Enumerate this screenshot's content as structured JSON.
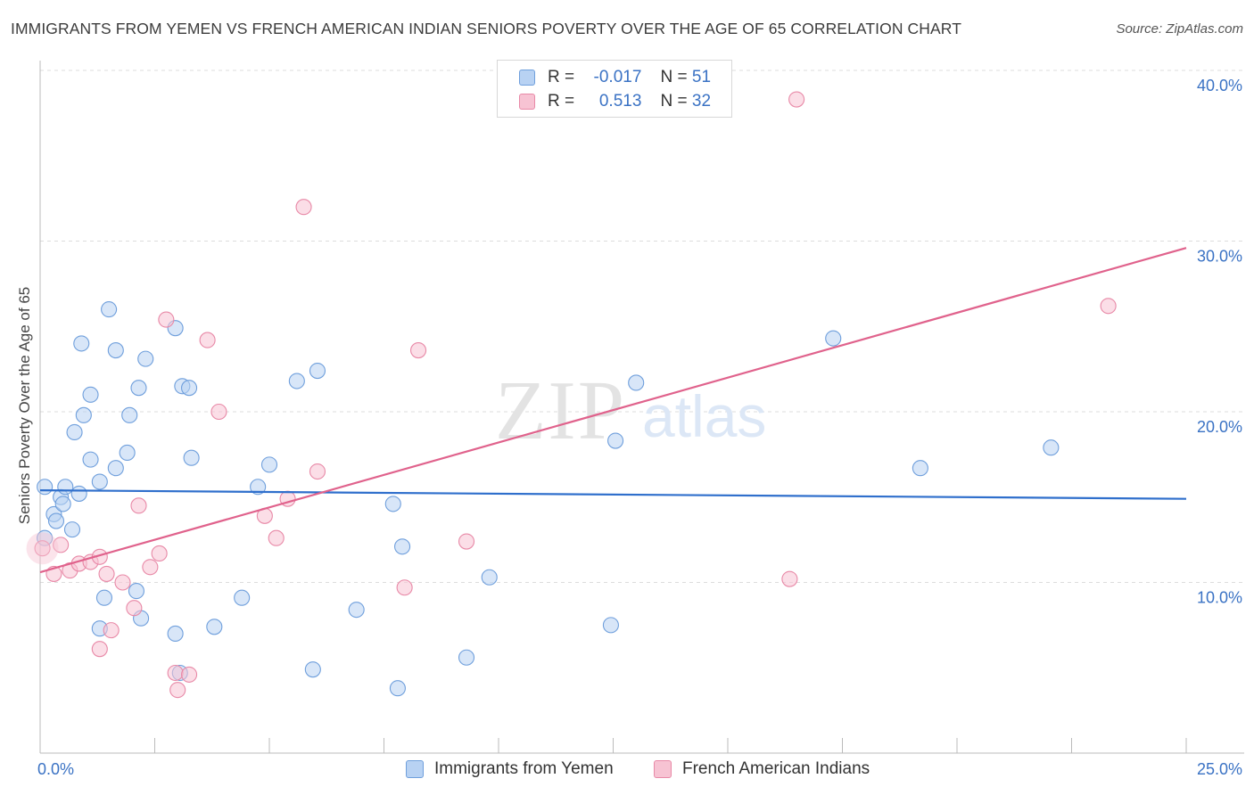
{
  "title": "IMMIGRANTS FROM YEMEN VS FRENCH AMERICAN INDIAN SENIORS POVERTY OVER THE AGE OF 65 CORRELATION CHART",
  "source": "Source: ZipAtlas.com",
  "watermark": {
    "zip": "ZIP",
    "atlas": "atlas"
  },
  "legend": {
    "rows": [
      {
        "r_label": "R =",
        "r_value": "-0.017",
        "n_label": "N =",
        "n_value": "51"
      },
      {
        "r_label": "R =",
        "r_value": "0.513",
        "n_label": "N =",
        "n_value": "32"
      }
    ]
  },
  "colors": {
    "blue_fill": "#b8d2f3",
    "blue_stroke": "#6f9fdc",
    "blue_line": "#2f6fcc",
    "pink_fill": "#f7c3d3",
    "pink_stroke": "#e889a7",
    "pink_line": "#e0628c",
    "tick": "#3a72c4",
    "grid": "#dddddd"
  },
  "chart_data": {
    "type": "scatter",
    "ylabel": "Seniors Poverty Over the Age of 65",
    "xlim": [
      0,
      25
    ],
    "ylim": [
      0,
      40
    ],
    "x_tick_labels": [
      "0.0%",
      "25.0%"
    ],
    "y_ticks": [
      10,
      20,
      30,
      40
    ],
    "y_tick_labels": [
      "10.0%",
      "20.0%",
      "30.0%",
      "40.0%"
    ],
    "series": [
      {
        "name": "Immigrants from Yemen",
        "color": "blue",
        "trend": {
          "x": [
            0,
            25
          ],
          "y": [
            15.4,
            14.9
          ]
        },
        "points": [
          [
            0.1,
            15.6
          ],
          [
            0.1,
            12.6
          ],
          [
            0.3,
            14.0
          ],
          [
            0.35,
            13.6
          ],
          [
            0.45,
            15.0
          ],
          [
            0.5,
            14.6
          ],
          [
            0.55,
            15.6
          ],
          [
            0.7,
            13.1
          ],
          [
            0.75,
            18.8
          ],
          [
            0.85,
            15.2
          ],
          [
            0.9,
            24.0
          ],
          [
            0.95,
            19.8
          ],
          [
            1.1,
            21.0
          ],
          [
            1.1,
            17.2
          ],
          [
            1.3,
            15.9
          ],
          [
            1.4,
            9.1
          ],
          [
            1.3,
            7.3
          ],
          [
            1.5,
            26.0
          ],
          [
            1.65,
            23.6
          ],
          [
            1.65,
            16.7
          ],
          [
            1.9,
            17.6
          ],
          [
            1.95,
            19.8
          ],
          [
            2.1,
            9.5
          ],
          [
            2.15,
            21.4
          ],
          [
            2.2,
            7.9
          ],
          [
            2.3,
            23.1
          ],
          [
            2.95,
            24.9
          ],
          [
            2.95,
            7.0
          ],
          [
            3.1,
            21.5
          ],
          [
            3.25,
            21.4
          ],
          [
            3.3,
            17.3
          ],
          [
            3.8,
            7.4
          ],
          [
            4.4,
            9.1
          ],
          [
            4.75,
            15.6
          ],
          [
            5.0,
            16.9
          ],
          [
            5.6,
            21.8
          ],
          [
            5.95,
            4.9
          ],
          [
            6.05,
            22.4
          ],
          [
            6.9,
            8.4
          ],
          [
            7.7,
            14.6
          ],
          [
            7.8,
            3.8
          ],
          [
            7.9,
            12.1
          ],
          [
            9.3,
            5.6
          ],
          [
            9.8,
            10.3
          ],
          [
            12.45,
            7.5
          ],
          [
            12.55,
            18.3
          ],
          [
            13.0,
            21.7
          ],
          [
            17.3,
            24.3
          ],
          [
            19.2,
            16.7
          ],
          [
            22.05,
            17.9
          ],
          [
            3.05,
            4.7
          ]
        ]
      },
      {
        "name": "French American Indians",
        "color": "pink",
        "trend": {
          "x": [
            0,
            25
          ],
          "y": [
            10.6,
            29.6
          ]
        },
        "points": [
          [
            0.05,
            12.0
          ],
          [
            0.3,
            10.5
          ],
          [
            0.45,
            12.2
          ],
          [
            0.65,
            10.7
          ],
          [
            0.85,
            11.1
          ],
          [
            1.1,
            11.2
          ],
          [
            1.3,
            11.5
          ],
          [
            1.45,
            10.5
          ],
          [
            1.55,
            7.2
          ],
          [
            1.3,
            6.1
          ],
          [
            1.8,
            10.0
          ],
          [
            2.05,
            8.5
          ],
          [
            2.15,
            14.5
          ],
          [
            2.4,
            10.9
          ],
          [
            2.6,
            11.7
          ],
          [
            2.75,
            25.4
          ],
          [
            2.95,
            4.7
          ],
          [
            3.0,
            3.7
          ],
          [
            3.25,
            4.6
          ],
          [
            3.65,
            24.2
          ],
          [
            3.9,
            20.0
          ],
          [
            4.9,
            13.9
          ],
          [
            5.15,
            12.6
          ],
          [
            5.4,
            14.9
          ],
          [
            5.75,
            32.0
          ],
          [
            6.05,
            16.5
          ],
          [
            7.95,
            9.7
          ],
          [
            8.25,
            23.6
          ],
          [
            9.3,
            12.4
          ],
          [
            16.35,
            10.2
          ],
          [
            16.5,
            38.3
          ],
          [
            23.3,
            26.2
          ]
        ]
      }
    ]
  },
  "bottom_legend": [
    "Immigrants from Yemen",
    "French American Indians"
  ]
}
